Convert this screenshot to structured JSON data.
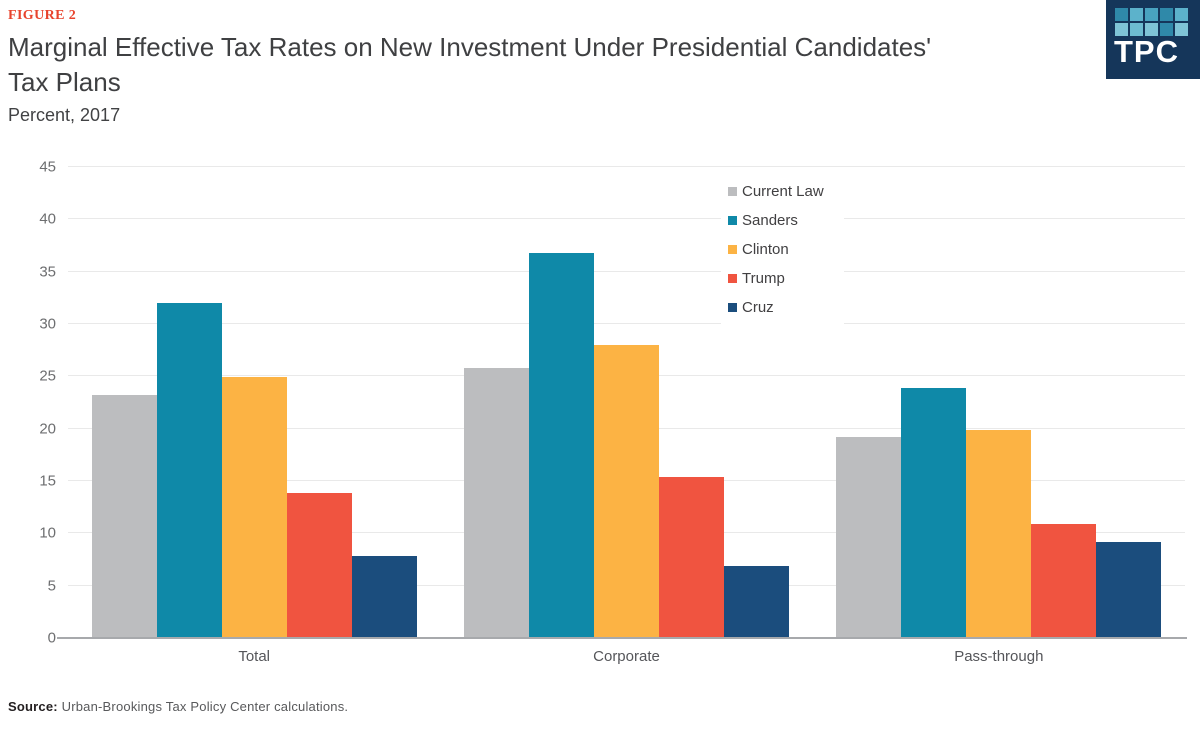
{
  "header": {
    "figure_label": "FIGURE 2",
    "title": "Marginal Effective Tax Rates on New Investment Under Presidential Candidates' Tax Plans",
    "subtitle": "Percent, 2017"
  },
  "logo": {
    "text": "TPC",
    "bg_color": "#15365a",
    "grid_colors": [
      "#2f89a9",
      "#5cb2cb",
      "#49a3c0",
      "#2f89a9",
      "#5cb2cb",
      "#7fc4d6",
      "#6dbcd0",
      "#7fc4d6",
      "#2f89a9",
      "#7fc4d6"
    ]
  },
  "chart_data": {
    "type": "bar",
    "title": "Marginal Effective Tax Rates on New Investment Under Presidential Candidates' Tax Plans",
    "subtitle": "Percent, 2017",
    "categories": [
      "Total",
      "Corporate",
      "Pass-through"
    ],
    "series": [
      {
        "name": "Current Law",
        "color": "#bcbdbf",
        "values": [
          23.2,
          25.8,
          19.2
        ]
      },
      {
        "name": "Sanders",
        "color": "#0f89a8",
        "values": [
          32.0,
          36.8,
          23.9
        ]
      },
      {
        "name": "Clinton",
        "color": "#fcb344",
        "values": [
          24.9,
          28.0,
          19.9
        ]
      },
      {
        "name": "Trump",
        "color": "#f05440",
        "values": [
          13.9,
          15.4,
          10.9
        ]
      },
      {
        "name": "Cruz",
        "color": "#1b4d7d",
        "values": [
          7.8,
          6.9,
          9.2
        ]
      }
    ],
    "xlabel": "",
    "ylabel": "Percent",
    "ylim": [
      0,
      45
    ],
    "ytick_interval": 5,
    "grid": true,
    "legend_position": "top-right-inside",
    "colors": {
      "gridline": "#e9e9e9",
      "axis_line": "#a7a9ac",
      "tick_text": "#6d6e70",
      "figure_label": "#e8432d"
    }
  },
  "footer": {
    "source_label": "Source:",
    "source_text": "Urban-Brookings Tax Policy Center calculations."
  }
}
